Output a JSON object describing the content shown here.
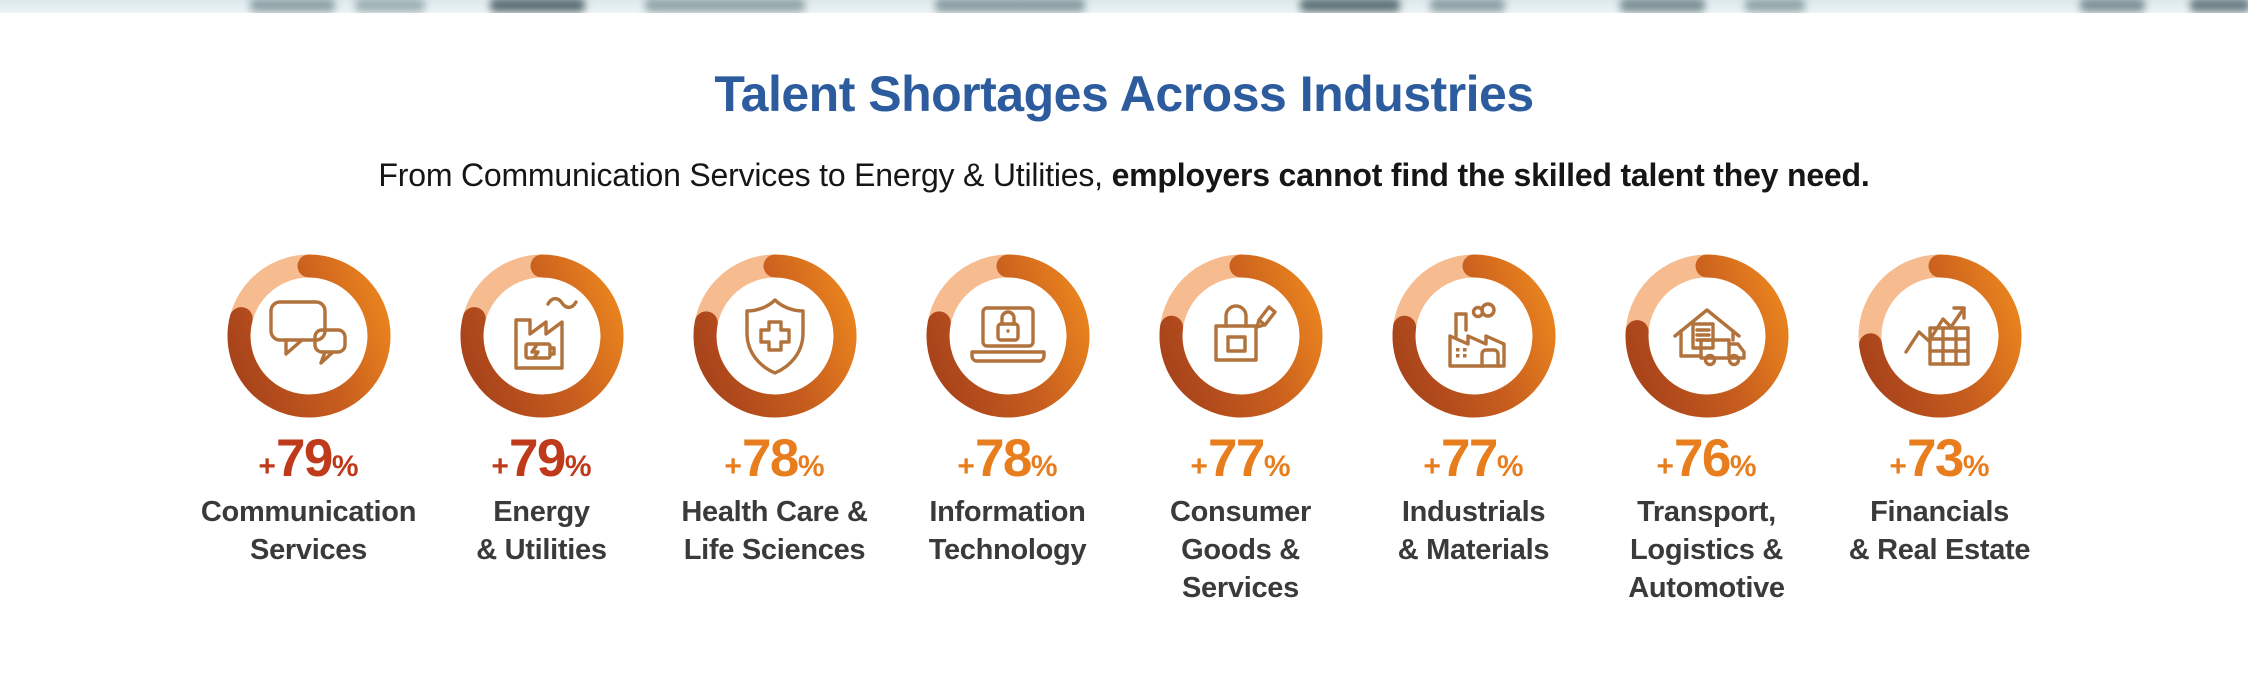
{
  "header": {
    "title": "Talent Shortages Across Industries",
    "subtitle_regular": "From Communication Services to Energy & Utilities, ",
    "subtitle_bold": "employers cannot find the skilled talent they need."
  },
  "colors": {
    "title_blue": "#2d5c9e",
    "subtitle_text": "#161616",
    "label_gray": "#3a3a3c",
    "ring_track": "#f6bb8f",
    "ring_arc_start": "#a8431b",
    "ring_arc_mid": "#c75d1e",
    "ring_arc_end": "#e8821e",
    "icon_stroke": "#b1723b",
    "pct_dark_red": "#be3a1b",
    "pct_orange": "#e87d1e"
  },
  "chart_data": {
    "type": "donut",
    "title": "Talent Shortages Across Industries",
    "subtitle": "From Communication Services to Energy & Utilities, employers cannot find the skilled talent they need.",
    "unit": "%",
    "value_range": [
      0,
      100
    ],
    "plus_sign": "+",
    "percent_sign": "%",
    "items": [
      {
        "label": "Communication Services",
        "label_lines": [
          "Communication",
          "Services"
        ],
        "value": 79,
        "display": "+79%",
        "icon": "speech-bubbles-icon",
        "pct_color": "#be3a1b"
      },
      {
        "label": "Energy & Utilities",
        "label_lines": [
          "Energy",
          "& Utilities"
        ],
        "value": 79,
        "display": "+79%",
        "icon": "energy-factory-icon",
        "pct_color": "#be3a1b"
      },
      {
        "label": "Health Care & Life Sciences",
        "label_lines": [
          "Health Care &",
          "Life Sciences"
        ],
        "value": 78,
        "display": "+78%",
        "icon": "health-shield-icon",
        "pct_color": "#e87d1e"
      },
      {
        "label": "Information Technology",
        "label_lines": [
          "Information",
          "Technology"
        ],
        "value": 78,
        "display": "+78%",
        "icon": "laptop-lock-icon",
        "pct_color": "#e87d1e"
      },
      {
        "label": "Consumer Goods & Services",
        "label_lines": [
          "Consumer",
          "Goods &",
          "Services"
        ],
        "value": 77,
        "display": "+77%",
        "icon": "shopping-bag-icon",
        "pct_color": "#e87d1e"
      },
      {
        "label": "Industrials & Materials",
        "label_lines": [
          "Industrials",
          "& Materials"
        ],
        "value": 77,
        "display": "+77%",
        "icon": "factory-icon",
        "pct_color": "#e87d1e"
      },
      {
        "label": "Transport, Logistics & Automotive",
        "label_lines": [
          "Transport,",
          "Logistics &",
          "Automotive"
        ],
        "value": 76,
        "display": "+76%",
        "icon": "warehouse-truck-icon",
        "pct_color": "#e87d1e"
      },
      {
        "label": "Financials & Real Estate",
        "label_lines": [
          "Financials",
          "& Real Estate"
        ],
        "value": 73,
        "display": "+73%",
        "icon": "chart-growth-icon",
        "pct_color": "#e87d1e"
      }
    ]
  }
}
